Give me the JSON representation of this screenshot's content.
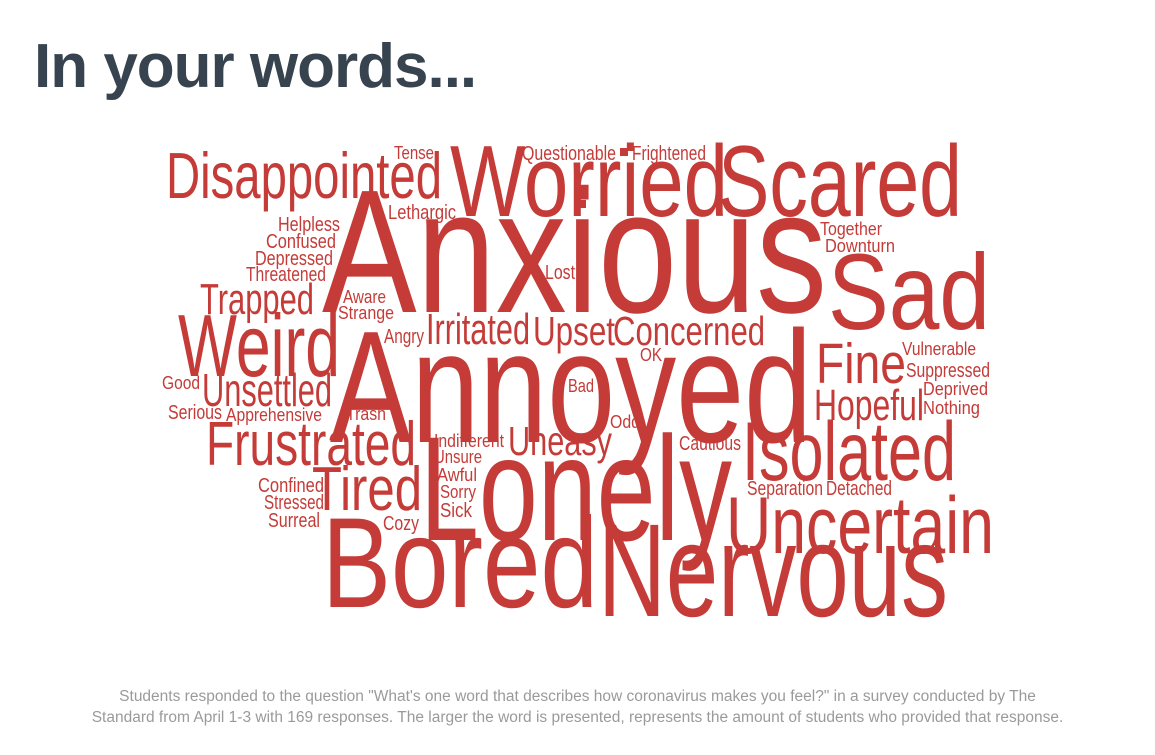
{
  "title": "In your words...",
  "word_color": "#c43b38",
  "title_color": "#37444f",
  "caption_color": "#9a9a9a",
  "words": [
    "Anxious",
    "Annoyed",
    "Lonely",
    "Bored",
    "Nervous",
    "Worried",
    "Scared",
    "Sad",
    "Weird",
    "Isolated",
    "Uncertain",
    "Disappointed",
    "Frustrated",
    "Tired",
    "Fine",
    "Hopeful",
    "Unsettled",
    "Trapped",
    "Irritated",
    "Upset",
    "Concerned",
    "Uneasy",
    "Helpless",
    "Confused",
    "Depressed",
    "Threatened",
    "Lethargic",
    "Tense",
    "Questionable",
    "Frightened",
    "Together",
    "Downturn",
    "Lost",
    "Aware",
    "Strange",
    "Angry",
    "OK",
    "Vulnerable",
    "Suppressed",
    "Deprived",
    "Nothing",
    "Good",
    "Serious",
    "Apprehensive",
    "Trash",
    "Bad",
    "Odd",
    "Indifferent",
    "Unsure",
    "Awful",
    "Sorry",
    "Sick",
    "Cautious",
    "Separation",
    "Detached",
    "Confined",
    "Stressed",
    "Surreal",
    "Cozy"
  ],
  "caption": [
    "Students responded to the question \"What's one word that describes how coronavirus makes you feel?\" in a survey conducted by The",
    "Standard from April 1-3 with 169 responses. The larger the word is presented, represents the amount of students who provided that response."
  ]
}
